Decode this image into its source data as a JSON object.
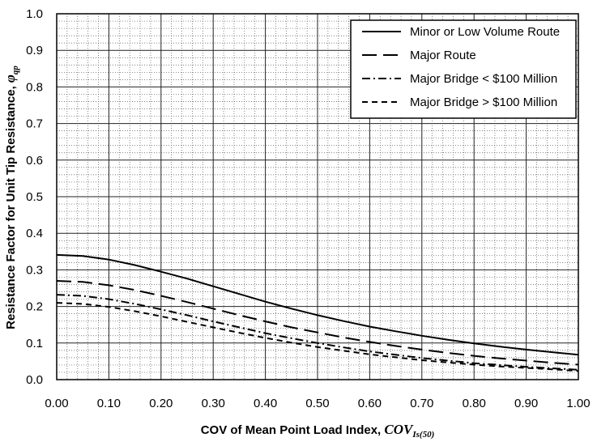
{
  "chart_data": {
    "type": "line",
    "title": "",
    "xlabel_prefix": "COV of Mean Point Load Index, ",
    "xlabel_symbol": "COV",
    "xlabel_sub": "Is(50)",
    "ylabel_prefix": "Resistance Factor for Unit Tip Resistance, ",
    "ylabel_symbol": "φ",
    "ylabel_sub": "qp",
    "xlim": [
      0,
      1
    ],
    "ylim": [
      0,
      1
    ],
    "x_ticks": [
      "0.00",
      "0.10",
      "0.20",
      "0.30",
      "0.40",
      "0.50",
      "0.60",
      "0.70",
      "0.80",
      "0.90",
      "1.00"
    ],
    "y_ticks": [
      "0.0",
      "0.1",
      "0.2",
      "0.3",
      "0.4",
      "0.5",
      "0.6",
      "0.7",
      "0.8",
      "0.9",
      "1.0"
    ],
    "grid": true,
    "minor_grid": true,
    "legend_position": "top-right",
    "series": [
      {
        "name": "Minor or Low Volume Route",
        "dash": "solid",
        "x": [
          0,
          0.05,
          0.1,
          0.15,
          0.2,
          0.25,
          0.3,
          0.35,
          0.4,
          0.45,
          0.5,
          0.55,
          0.6,
          0.65,
          0.7,
          0.75,
          0.8,
          0.85,
          0.9,
          0.95,
          1.0
        ],
        "y": [
          0.341,
          0.338,
          0.328,
          0.313,
          0.295,
          0.276,
          0.255,
          0.234,
          0.213,
          0.194,
          0.176,
          0.16,
          0.145,
          0.132,
          0.12,
          0.109,
          0.099,
          0.09,
          0.082,
          0.075,
          0.068
        ]
      },
      {
        "name": "Major Route",
        "dash": "long-dash",
        "x": [
          0,
          0.05,
          0.1,
          0.15,
          0.2,
          0.25,
          0.3,
          0.35,
          0.4,
          0.45,
          0.5,
          0.55,
          0.6,
          0.65,
          0.7,
          0.75,
          0.8,
          0.85,
          0.9,
          0.95,
          1.0
        ],
        "y": [
          0.27,
          0.267,
          0.258,
          0.245,
          0.229,
          0.212,
          0.194,
          0.176,
          0.159,
          0.143,
          0.129,
          0.115,
          0.103,
          0.092,
          0.082,
          0.073,
          0.065,
          0.058,
          0.052,
          0.046,
          0.041
        ]
      },
      {
        "name": "Major Bridge < $100 Million",
        "dash": "dash-dot",
        "x": [
          0,
          0.05,
          0.1,
          0.15,
          0.2,
          0.25,
          0.3,
          0.35,
          0.4,
          0.45,
          0.5,
          0.55,
          0.6,
          0.65,
          0.7,
          0.75,
          0.8,
          0.85,
          0.9,
          0.95,
          1.0
        ],
        "y": [
          0.232,
          0.229,
          0.22,
          0.207,
          0.192,
          0.176,
          0.159,
          0.143,
          0.127,
          0.113,
          0.1,
          0.088,
          0.077,
          0.068,
          0.059,
          0.052,
          0.045,
          0.04,
          0.035,
          0.031,
          0.027
        ]
      },
      {
        "name": "Major Bridge > $100 Million",
        "dash": "short-dash",
        "x": [
          0,
          0.05,
          0.1,
          0.15,
          0.2,
          0.25,
          0.3,
          0.35,
          0.4,
          0.45,
          0.5,
          0.55,
          0.6,
          0.65,
          0.7,
          0.75,
          0.8,
          0.85,
          0.9,
          0.95,
          1.0
        ],
        "y": [
          0.21,
          0.207,
          0.199,
          0.187,
          0.173,
          0.158,
          0.143,
          0.128,
          0.114,
          0.101,
          0.089,
          0.079,
          0.069,
          0.061,
          0.053,
          0.047,
          0.041,
          0.036,
          0.032,
          0.028,
          0.024
        ]
      }
    ]
  }
}
